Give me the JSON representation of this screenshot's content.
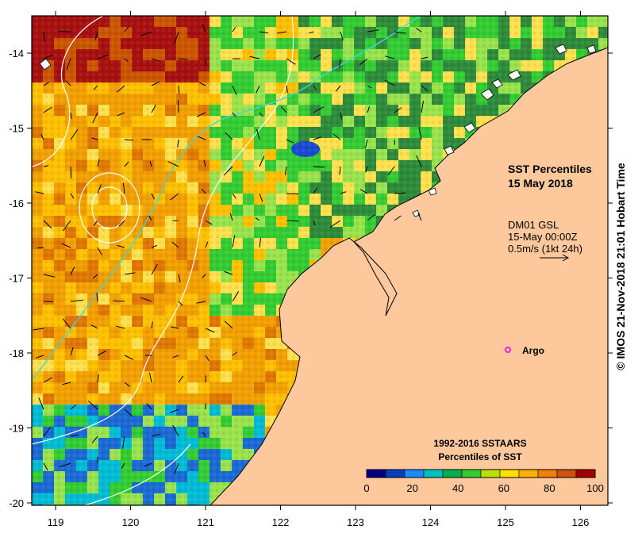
{
  "map": {
    "title_line1": "SST Percentiles",
    "title_line2": "15 May 2018",
    "ocean_colors": [
      "#2e8b3a",
      "#33cc33",
      "#99e34d",
      "#ffe04d",
      "#ffc000",
      "#f2a000",
      "#e07800",
      "#cc5500",
      "#a81010",
      "#1a6ad6",
      "#00bcd4"
    ],
    "land_color": "#fdc89c",
    "x_ticks": [
      "119",
      "120",
      "121",
      "122",
      "123",
      "124",
      "125",
      "126"
    ],
    "y_ticks": [
      "-14",
      "-15",
      "-16",
      "-17",
      "-18",
      "-19",
      "-20"
    ]
  },
  "current_legend": {
    "line1": "DM01 GSL",
    "line2": "15-May 00:00Z",
    "line3": "0.5m/s (1kt 24h)",
    "arrow_icon": "arrow-right-icon"
  },
  "argo": {
    "label": "Argo",
    "marker_color": "#e020e0"
  },
  "colorbar": {
    "title_line1": "1992-2016 SSTAARS",
    "title_line2": "Percentiles of SST",
    "colors": [
      "#000080",
      "#0040c0",
      "#1a8cff",
      "#00c0c0",
      "#00b050",
      "#33cc33",
      "#b8e000",
      "#ffe000",
      "#ffb000",
      "#f08000",
      "#d05010",
      "#a00000"
    ],
    "tick_labels": [
      "0",
      "20",
      "40",
      "60",
      "80",
      "100"
    ]
  },
  "credit": "© IMOS 21-Nov-2018 21:01 Hobart Time"
}
